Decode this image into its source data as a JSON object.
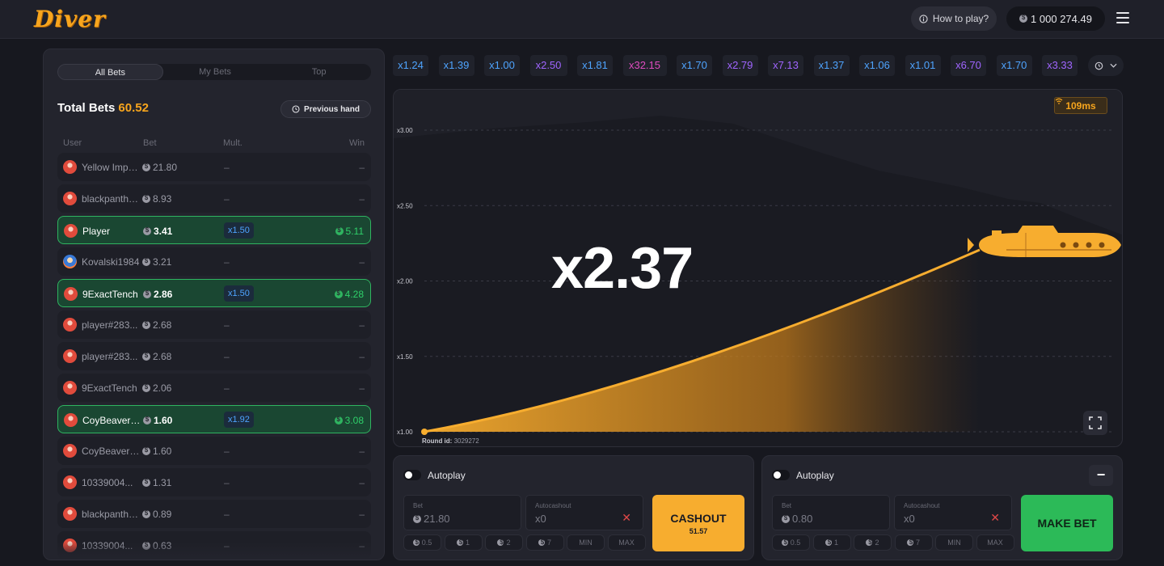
{
  "header": {
    "logo": "Diver",
    "how_to_play": "How to play?",
    "balance": "1 000 274.49"
  },
  "bets_panel": {
    "tabs": [
      {
        "label": "All Bets",
        "active": true
      },
      {
        "label": "My Bets",
        "active": false
      },
      {
        "label": "Top",
        "active": false
      }
    ],
    "total_label": "Total Bets",
    "total_value": "60.52",
    "previous_hand": "Previous hand",
    "columns": {
      "user": "User",
      "bet": "Bet",
      "mult": "Mult.",
      "win": "Win"
    },
    "rows": [
      {
        "user": "Yellow Impor...",
        "bet": "21.80",
        "mult": "–",
        "win": "–",
        "won": false
      },
      {
        "user": "blackpanthe...",
        "bet": "8.93",
        "mult": "–",
        "win": "–",
        "won": false
      },
      {
        "user": "Player",
        "bet": "3.41",
        "mult": "x1.50",
        "win": "5.11",
        "won": true
      },
      {
        "user": "Kovalski1984",
        "bet": "3.21",
        "mult": "–",
        "win": "–",
        "won": false,
        "alt_avatar": true
      },
      {
        "user": "9ExactTench",
        "bet": "2.86",
        "mult": "x1.50",
        "win": "4.28",
        "won": true
      },
      {
        "user": "player#283...",
        "bet": "2.68",
        "mult": "–",
        "win": "–",
        "won": false
      },
      {
        "user": "player#283...",
        "bet": "2.68",
        "mult": "–",
        "win": "–",
        "won": false
      },
      {
        "user": "9ExactTench",
        "bet": "2.06",
        "mult": "–",
        "win": "–",
        "won": false
      },
      {
        "user": "CoyBeaver23",
        "bet": "1.60",
        "mult": "x1.92",
        "win": "3.08",
        "won": true
      },
      {
        "user": "CoyBeaver23",
        "bet": "1.60",
        "mult": "–",
        "win": "–",
        "won": false
      },
      {
        "user": "10339004...",
        "bet": "1.31",
        "mult": "–",
        "win": "–",
        "won": false
      },
      {
        "user": "blackpanthe...",
        "bet": "0.89",
        "mult": "–",
        "win": "–",
        "won": false
      },
      {
        "user": "10339004...",
        "bet": "0.63",
        "mult": "–",
        "win": "–",
        "won": false
      }
    ]
  },
  "history": [
    {
      "value": "x1.24",
      "color": "blue"
    },
    {
      "value": "x1.39",
      "color": "blue"
    },
    {
      "value": "x1.00",
      "color": "blue"
    },
    {
      "value": "x2.50",
      "color": "purple"
    },
    {
      "value": "x1.81",
      "color": "blue"
    },
    {
      "value": "x32.15",
      "color": "pink"
    },
    {
      "value": "x1.70",
      "color": "blue"
    },
    {
      "value": "x2.79",
      "color": "purple"
    },
    {
      "value": "x7.13",
      "color": "purple"
    },
    {
      "value": "x1.37",
      "color": "blue"
    },
    {
      "value": "x1.06",
      "color": "blue"
    },
    {
      "value": "x1.01",
      "color": "blue"
    },
    {
      "value": "x6.70",
      "color": "purple"
    },
    {
      "value": "x1.70",
      "color": "blue"
    },
    {
      "value": "x3.33",
      "color": "purple"
    }
  ],
  "game": {
    "ping": "109ms",
    "multiplier": "x2.37",
    "y_axis": [
      "x3.00",
      "x2.50",
      "x2.00",
      "x1.50",
      "x1.00"
    ],
    "round_label": "Round id:",
    "round_id": "3029272",
    "accent": "#f7ad2f"
  },
  "bet1": {
    "autoplay": "Autoplay",
    "bet_label": "Bet",
    "bet_value": "21.80",
    "autocash_label": "Autocashout",
    "autocash_value": "x0",
    "chips": [
      "0.5",
      "1",
      "2",
      "7",
      "MIN",
      "MAX"
    ],
    "button": "CASHOUT",
    "button_sub": "51.57"
  },
  "bet2": {
    "autoplay": "Autoplay",
    "bet_label": "Bet",
    "bet_value": "0.80",
    "autocash_label": "Autocashout",
    "autocash_value": "x0",
    "chips": [
      "0.5",
      "1",
      "2",
      "7",
      "MIN",
      "MAX"
    ],
    "button": "MAKE BET",
    "minus": "−"
  }
}
